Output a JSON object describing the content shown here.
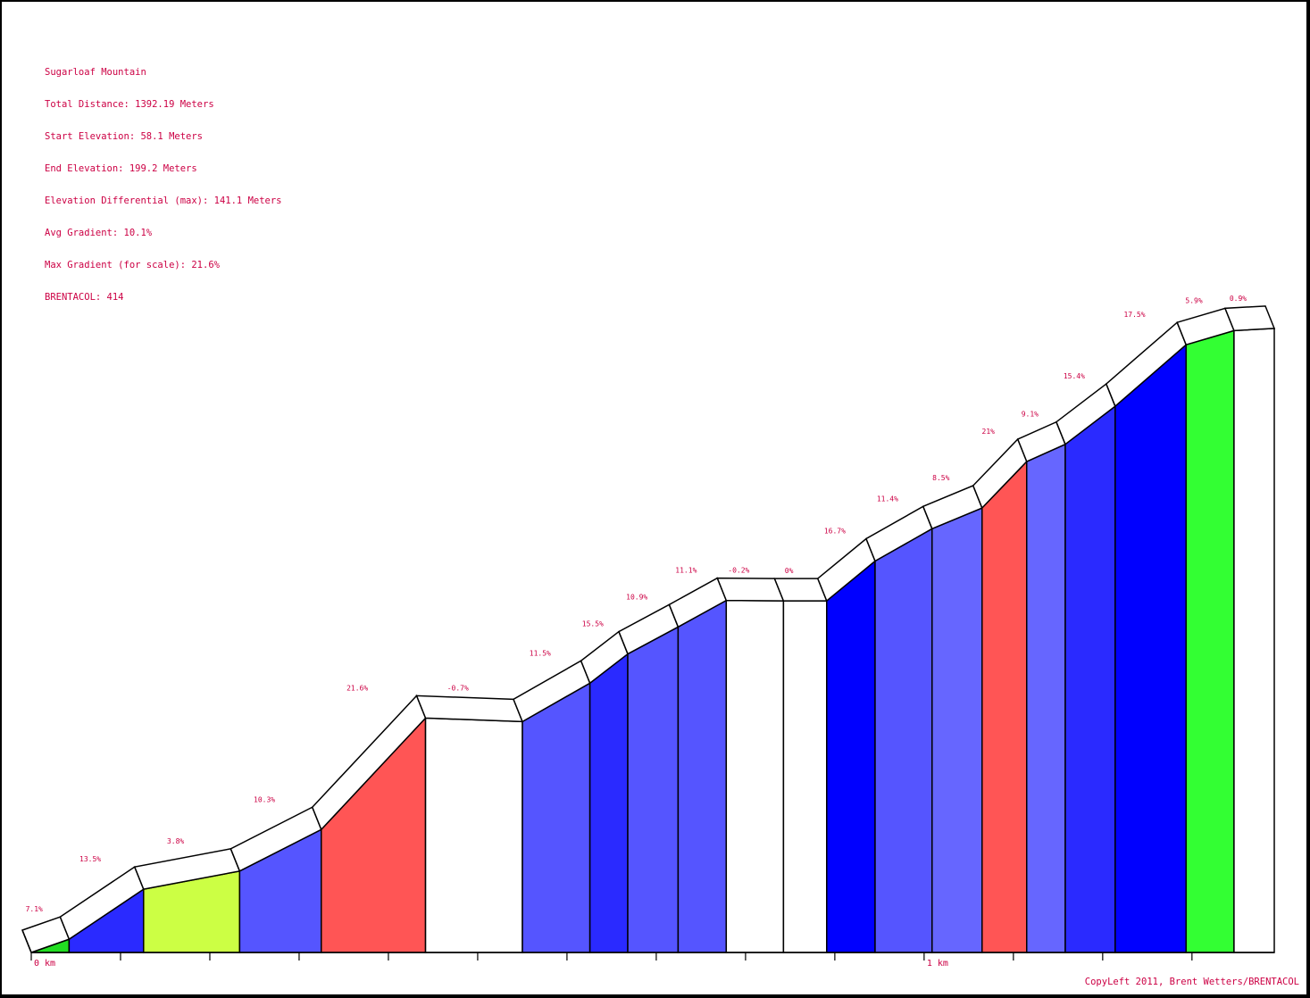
{
  "info": {
    "name": "Sugarloaf Mountain",
    "total_distance": "Total Distance: 1392.19 Meters",
    "start_elevation": "Start Elevation: 58.1 Meters",
    "end_elevation": "End Elevation: 199.2 Meters",
    "elevation_differential": "Elevation Differential (max): 141.1 Meters",
    "avg_gradient": "Avg Gradient: 10.1%",
    "max_gradient": "Max Gradient (for scale): 21.6%",
    "brentacol": "BRENTACOL: 414"
  },
  "copyright": "CopyLeft 2011, Brent Wetters/BRENTACOL",
  "colors": {
    "label": "#cc0044",
    "outline": "#000000",
    "background": "#ffffff"
  },
  "chart_data": {
    "type": "area",
    "title": "Sugarloaf Mountain",
    "xlabel": "",
    "ylabel": "",
    "xlim": [
      0,
      1392.19
    ],
    "ylim": [
      0,
      199.2
    ],
    "x_tick_labels": [
      {
        "value": 0,
        "label": "0 km"
      },
      {
        "value": 1000,
        "label": "1 km"
      }
    ],
    "minor_tick_step_m": 100,
    "segments": [
      {
        "x0": 0,
        "x1": 42.4,
        "y0": 0.0,
        "y1": 3.0,
        "gradient": "7.1%",
        "color": "#22dd22"
      },
      {
        "x0": 42.4,
        "x1": 125.8,
        "y0": 3.0,
        "y1": 14.3,
        "gradient": "13.5%",
        "color": "#2a2aff"
      },
      {
        "x0": 125.8,
        "x1": 233.4,
        "y0": 14.3,
        "y1": 18.4,
        "gradient": "3.8%",
        "color": "#ccff44"
      },
      {
        "x0": 233.4,
        "x1": 324.8,
        "y0": 18.4,
        "y1": 27.8,
        "gradient": "10.3%",
        "color": "#5555ff"
      },
      {
        "x0": 324.8,
        "x1": 441.6,
        "y0": 27.8,
        "y1": 53.0,
        "gradient": "21.6%",
        "color": "#ff5555"
      },
      {
        "x0": 441.6,
        "x1": 550.1,
        "y0": 53.0,
        "y1": 52.2,
        "gradient": "-0.7%",
        "color": "#ffffff"
      },
      {
        "x0": 550.1,
        "x1": 625.7,
        "y0": 52.2,
        "y1": 60.9,
        "gradient": "11.5%",
        "color": "#5555ff"
      },
      {
        "x0": 625.7,
        "x1": 668.1,
        "y0": 60.9,
        "y1": 67.5,
        "gradient": "15.5%",
        "color": "#2a2aff"
      },
      {
        "x0": 668.1,
        "x1": 724.5,
        "y0": 67.5,
        "y1": 73.6,
        "gradient": "10.9%",
        "color": "#5555ff"
      },
      {
        "x0": 724.5,
        "x1": 778.4,
        "y0": 73.6,
        "y1": 79.6,
        "gradient": "11.1%",
        "color": "#5555ff"
      },
      {
        "x0": 778.4,
        "x1": 842.5,
        "y0": 79.6,
        "y1": 79.5,
        "gradient": "-0.2%",
        "color": "#ffffff"
      },
      {
        "x0": 842.5,
        "x1": 890.9,
        "y0": 79.5,
        "y1": 79.5,
        "gradient": "0%",
        "color": "#ffffff"
      },
      {
        "x0": 890.9,
        "x1": 945.1,
        "y0": 79.5,
        "y1": 88.5,
        "gradient": "16.7%",
        "color": "#0000ff"
      },
      {
        "x0": 945.1,
        "x1": 1008.9,
        "y0": 88.5,
        "y1": 95.8,
        "gradient": "11.4%",
        "color": "#5555ff"
      },
      {
        "x0": 1008.9,
        "x1": 1064.9,
        "y0": 95.8,
        "y1": 100.5,
        "gradient": "8.5%",
        "color": "#6666ff"
      },
      {
        "x0": 1064.9,
        "x1": 1114.9,
        "y0": 100.5,
        "y1": 111.0,
        "gradient": "21%",
        "color": "#ff5555"
      },
      {
        "x0": 1114.9,
        "x1": 1158.1,
        "y0": 111.0,
        "y1": 114.9,
        "gradient": "9.1%",
        "color": "#6666ff"
      },
      {
        "x0": 1158.1,
        "x1": 1214.0,
        "y0": 114.9,
        "y1": 123.5,
        "gradient": "15.4%",
        "color": "#2a2aff"
      },
      {
        "x0": 1214.0,
        "x1": 1293.4,
        "y0": 123.5,
        "y1": 137.4,
        "gradient": "17.5%",
        "color": "#0000ff"
      },
      {
        "x0": 1293.4,
        "x1": 1347.1,
        "y0": 137.4,
        "y1": 140.6,
        "gradient": "5.9%",
        "color": "#33ff33"
      },
      {
        "x0": 1347.1,
        "x1": 1392.19,
        "y0": 140.6,
        "y1": 141.1,
        "gradient": "0.9%",
        "color": "#ffffff"
      }
    ]
  }
}
